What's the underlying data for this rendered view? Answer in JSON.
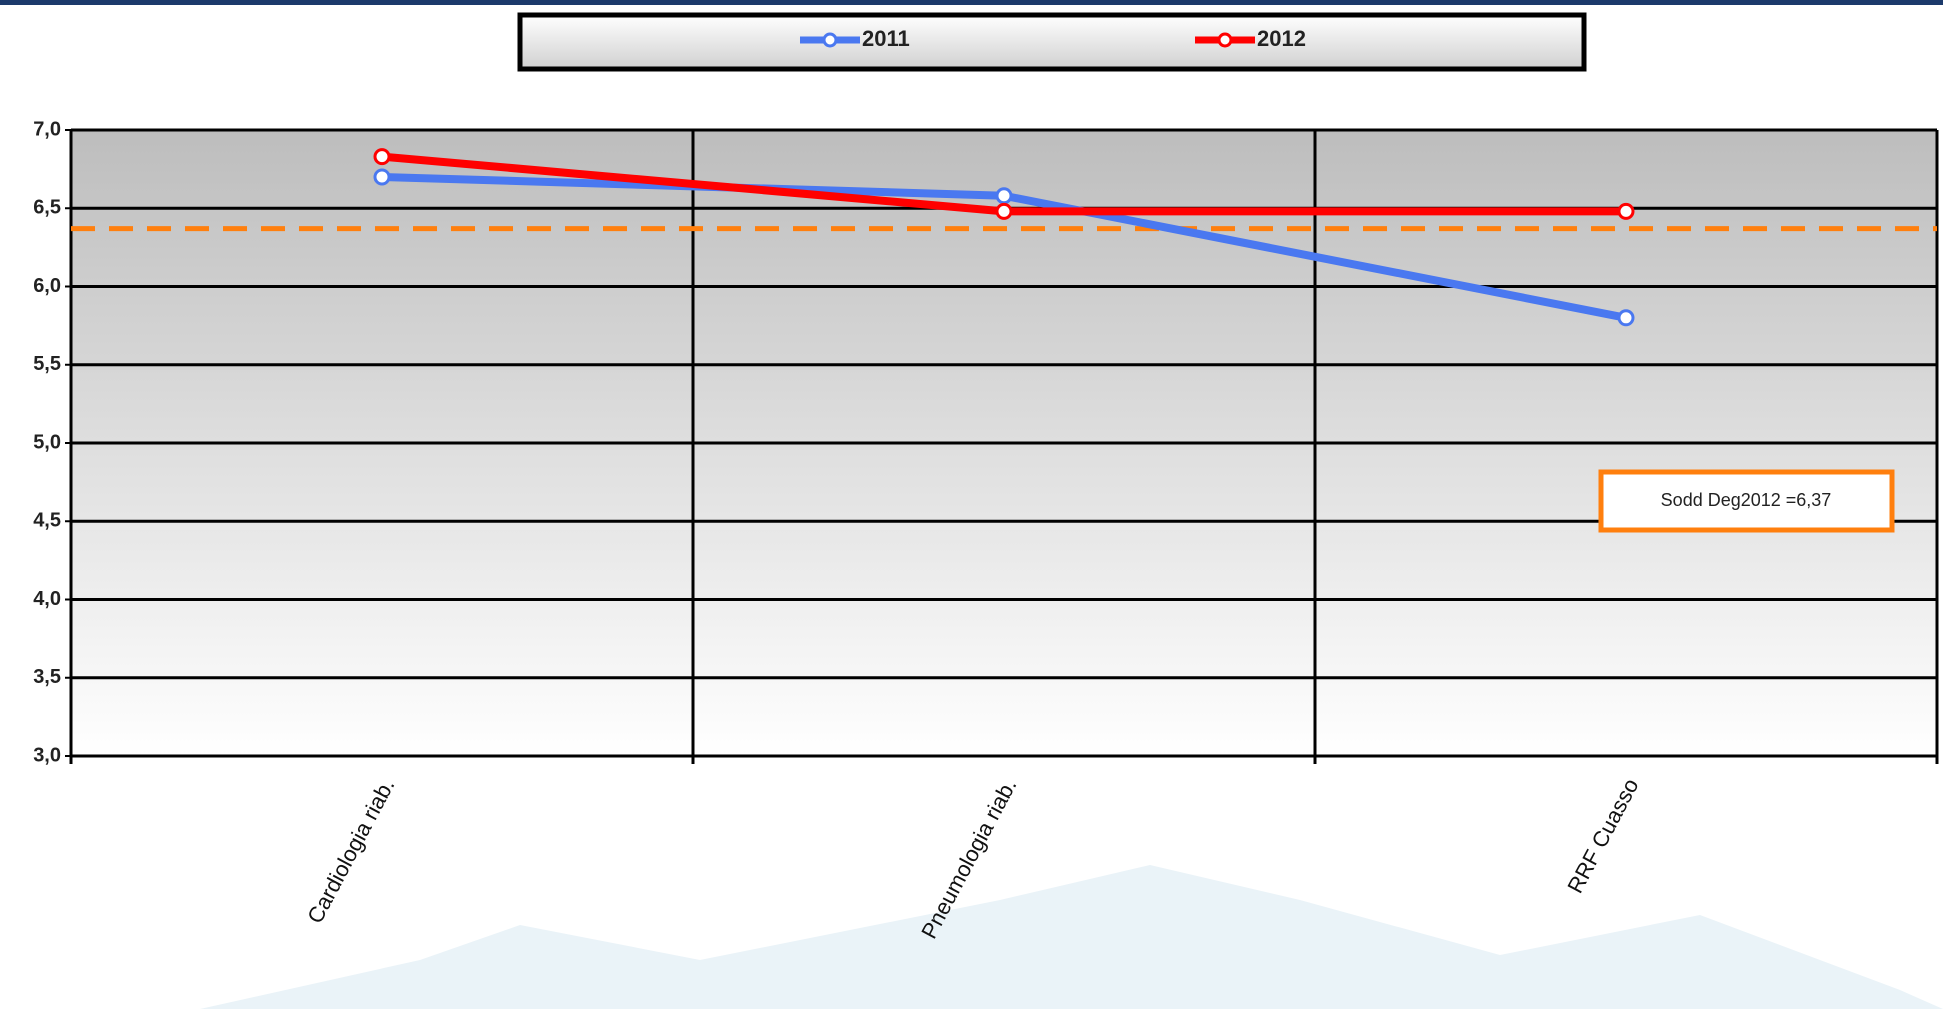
{
  "chart_data": {
    "type": "line",
    "categories": [
      "Cardiologia riab.",
      "Pneumologia riab.",
      "RRF Cuasso"
    ],
    "series": [
      {
        "name": "2011",
        "color": "#4a78f0",
        "values": [
          6.7,
          6.58,
          5.8
        ]
      },
      {
        "name": "2012",
        "color": "#ff0000",
        "values": [
          6.83,
          6.48,
          6.48
        ]
      }
    ],
    "ylim": [
      3,
      7
    ],
    "yticks": [
      {
        "value": 3,
        "label": "3,0"
      },
      {
        "value": 3.5,
        "label": "3,5"
      },
      {
        "value": 4,
        "label": "4,0"
      },
      {
        "value": 4.5,
        "label": "4,5"
      },
      {
        "value": 5,
        "label": "5,0"
      },
      {
        "value": 5.5,
        "label": "5,5"
      },
      {
        "value": 6,
        "label": "6,0"
      },
      {
        "value": 6.5,
        "label": "6,5"
      },
      {
        "value": 7,
        "label": "7,0"
      }
    ],
    "grid": true,
    "legend": "top",
    "reference_line": {
      "value": 6.37,
      "label": "Sodd Deg2012 =6,37",
      "color": "#ff7f0e"
    }
  }
}
